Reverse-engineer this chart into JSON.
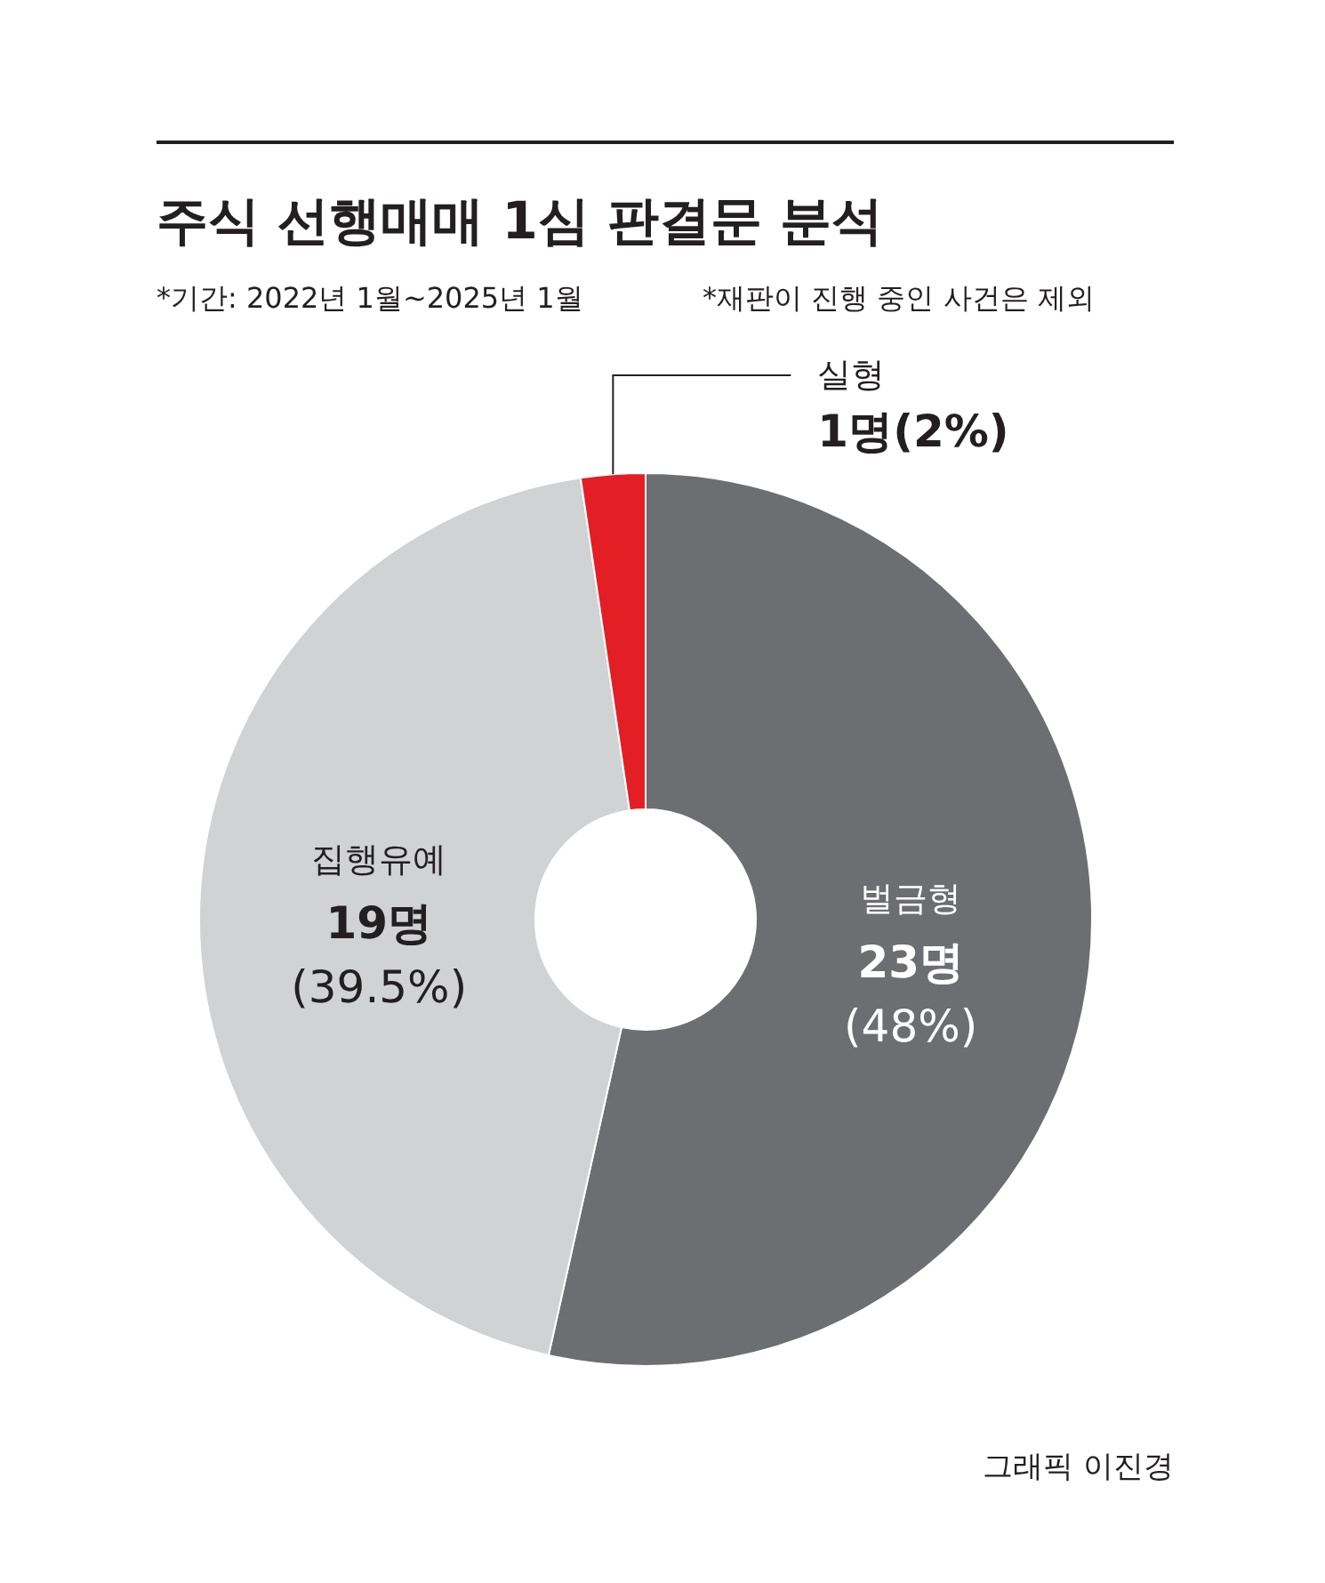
{
  "chart_data": {
    "type": "donut",
    "title": "주식 선행매매 1심 판결문 분석",
    "annotations": [
      "*기간: 2022년 1월~2025년 1월",
      "*재판이 진행 중인 사건은 제외",
      "그래픽 이진경"
    ],
    "categories": [
      "벌금형",
      "집행유예",
      "실형"
    ],
    "values": [
      23,
      19,
      1
    ],
    "value_labels": [
      "23명\n(48%)",
      "19명\n(39.5%)",
      "1명(2%)"
    ],
    "colors": [
      "#6d6e71",
      "#d1d2d4",
      "#e31e25"
    ]
  }
}
